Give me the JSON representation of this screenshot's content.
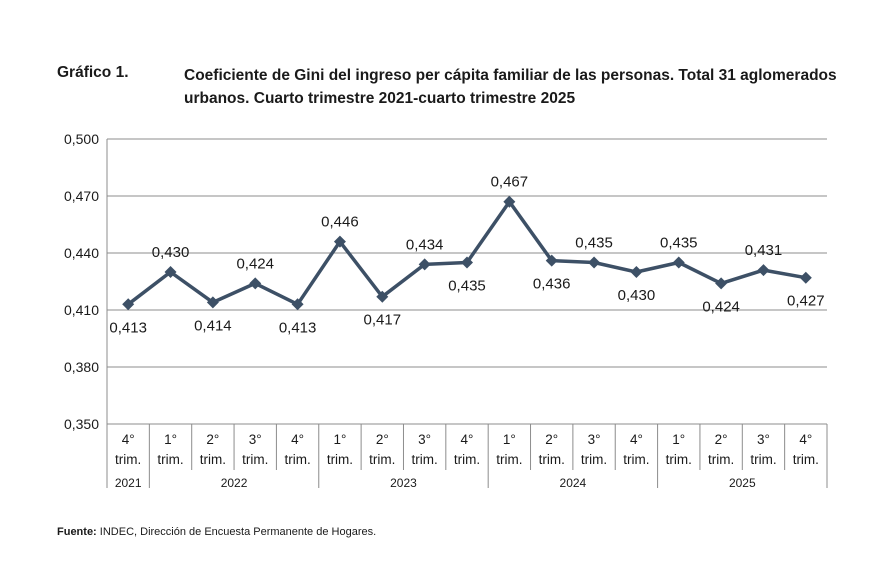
{
  "header": {
    "label": "Gráfico 1.",
    "title": "Coeficiente de Gini del ingreso per cápita familiar de las personas. Total 31 aglomerados urbanos. Cuarto trimestre 2021-cuarto trimestre 2025"
  },
  "chart_data": {
    "type": "line",
    "title": "Coeficiente de Gini del ingreso per cápita familiar de las personas. Total 31 aglomerados urbanos. Cuarto trimestre 2021-cuarto trimestre 2025",
    "categories": [
      {
        "q": "4°",
        "t": "trim."
      },
      {
        "q": "1°",
        "t": "trim."
      },
      {
        "q": "2°",
        "t": "trim."
      },
      {
        "q": "3°",
        "t": "trim."
      },
      {
        "q": "4°",
        "t": "trim."
      },
      {
        "q": "1°",
        "t": "trim."
      },
      {
        "q": "2°",
        "t": "trim."
      },
      {
        "q": "3°",
        "t": "trim."
      },
      {
        "q": "4°",
        "t": "trim."
      },
      {
        "q": "1°",
        "t": "trim."
      },
      {
        "q": "2°",
        "t": "trim."
      },
      {
        "q": "3°",
        "t": "trim."
      },
      {
        "q": "4°",
        "t": "trim."
      },
      {
        "q": "1°",
        "t": "trim."
      },
      {
        "q": "2°",
        "t": "trim."
      },
      {
        "q": "3°",
        "t": "trim."
      },
      {
        "q": "4°",
        "t": "trim."
      }
    ],
    "years": [
      {
        "label": "2021",
        "span": 1
      },
      {
        "label": "2022",
        "span": 4
      },
      {
        "label": "2023",
        "span": 4
      },
      {
        "label": "2024",
        "span": 4
      },
      {
        "label": "2025",
        "span": 4
      }
    ],
    "values": [
      0.413,
      0.43,
      0.414,
      0.424,
      0.413,
      0.446,
      0.417,
      0.434,
      0.435,
      0.467,
      0.436,
      0.435,
      0.43,
      0.435,
      0.424,
      0.431,
      0.427
    ],
    "value_labels": [
      "0,413",
      "0,430",
      "0,414",
      "0,424",
      "0,413",
      "0,446",
      "0,417",
      "0,434",
      "0,435",
      "0,467",
      "0,436",
      "0,435",
      "0,430",
      "0,435",
      "0,424",
      "0,431",
      "0,427"
    ],
    "label_positions": [
      "below",
      "above",
      "below",
      "above",
      "below",
      "above",
      "below",
      "above",
      "below",
      "above",
      "below",
      "above",
      "below",
      "above",
      "below",
      "above",
      "below"
    ],
    "ylim": [
      0.35,
      0.5
    ],
    "yticks": [
      0.35,
      0.38,
      0.41,
      0.44,
      0.47,
      0.5
    ],
    "ytick_labels": [
      "0,350",
      "0,380",
      "0,410",
      "0,440",
      "0,470",
      "0,500"
    ],
    "xlabel": "",
    "ylabel": "",
    "grid": true,
    "line_color": "#3d5066",
    "grid_color": "#8c8c8c"
  },
  "source": {
    "label": "Fuente:",
    "text": " INDEC, Dirección de Encuesta Permanente de Hogares."
  }
}
